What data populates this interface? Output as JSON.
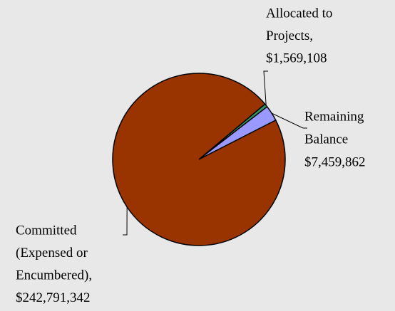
{
  "chart_data": {
    "type": "pie",
    "categories": [
      [
        "Allocated to",
        "Projects,"
      ],
      [
        "Remaining",
        "Balance"
      ],
      [
        "Committed",
        "(Expensed or",
        "Encumbered),"
      ]
    ],
    "values": [
      1569108,
      7459862,
      242791342
    ],
    "value_labels": [
      "$1,569,108",
      "$7,459,862",
      "$242,791,342"
    ],
    "colors": [
      "#339966",
      "#9999ff",
      "#993300"
    ]
  }
}
